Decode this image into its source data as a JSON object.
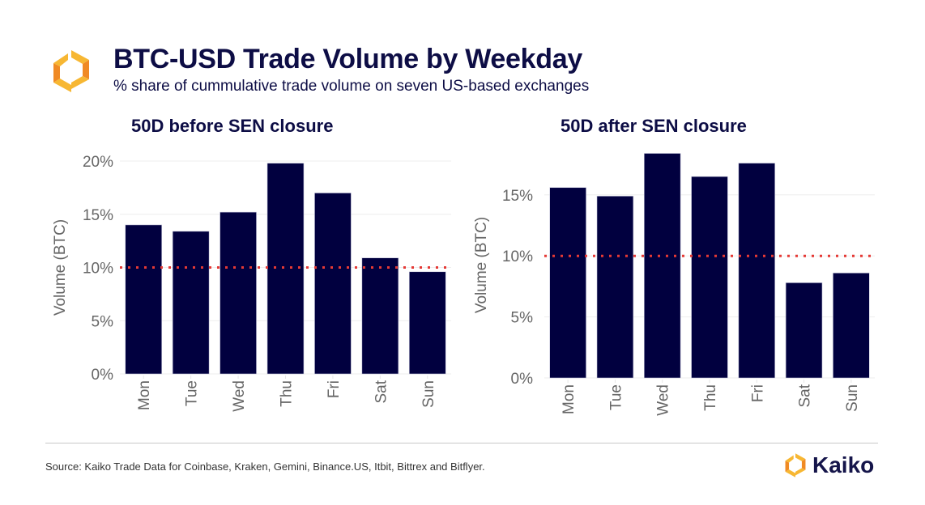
{
  "header": {
    "title": "BTC-USD Trade Volume by Weekday",
    "subtitle": "% share of cummulative trade volume on seven US-based exchanges",
    "logo_icon": "kaiko-hexagon-logo-icon"
  },
  "colors": {
    "bar": "#01003f",
    "reference_line": "#e53935",
    "title": "#0d0d45",
    "axis_text": "#666666",
    "grid": "#eeeeee",
    "logo_orange": "#f08a24",
    "logo_yellow": "#f7b733"
  },
  "chart_data": [
    {
      "type": "bar",
      "title": "50D before SEN closure",
      "xlabel": "",
      "ylabel": "Volume (BTC)",
      "categories": [
        "Mon",
        "Tue",
        "Wed",
        "Thu",
        "Fri",
        "Sat",
        "Sun"
      ],
      "values": [
        14.0,
        13.4,
        15.2,
        19.8,
        17.0,
        10.9,
        9.6
      ],
      "value_unit": "%",
      "ylim": [
        0,
        20
      ],
      "yticks": [
        0,
        5,
        10,
        15,
        20
      ],
      "ytick_labels": [
        "0%",
        "5%",
        "10%",
        "15%",
        "20%"
      ],
      "reference_line": {
        "value": 10,
        "style": "dotted"
      },
      "grid": true
    },
    {
      "type": "bar",
      "title": "50D after SEN closure",
      "xlabel": "",
      "ylabel": "Volume (BTC)",
      "categories": [
        "Mon",
        "Tue",
        "Wed",
        "Thu",
        "Fri",
        "Sat",
        "Sun"
      ],
      "values": [
        15.6,
        14.9,
        18.4,
        16.5,
        17.6,
        7.8,
        8.6
      ],
      "value_unit": "%",
      "ylim": [
        0,
        18.5
      ],
      "yticks": [
        0,
        5,
        10,
        15
      ],
      "ytick_labels": [
        "0%",
        "5%",
        "10%",
        "15%"
      ],
      "reference_line": {
        "value": 10,
        "style": "dotted"
      },
      "grid": true
    }
  ],
  "footer": {
    "source": "Source: Kaiko Trade Data for Coinbase, Kraken, Gemini, Binance.US, Itbit, Bittrex and Bitflyer.",
    "brand_name": "Kaiko",
    "brand_icon": "kaiko-hexagon-logo-icon"
  }
}
